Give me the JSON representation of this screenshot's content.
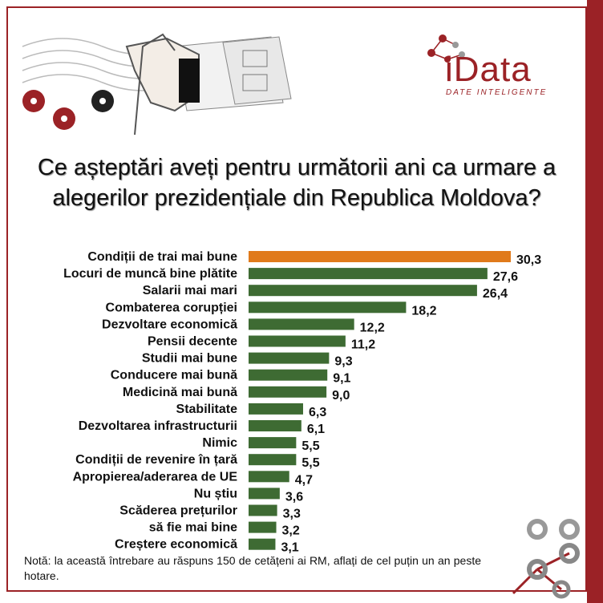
{
  "title": "Ce așteptări aveți pentru următorii ani ca urmare a alegerilor prezidențiale din Republica Moldova?",
  "logo": {
    "word": "iData",
    "tagline": "DATE INTELIGENTE"
  },
  "note": "Notă: la această întrebare au răspuns 150 de cetățeni ai RM, aflați de cel puțin un an peste hotare.",
  "colors": {
    "highlight": "#e07a1b",
    "bar": "#3e6b33",
    "accent": "#9b2226"
  },
  "chart_data": {
    "type": "bar",
    "orientation": "horizontal",
    "categories": [
      "Condiții de trai mai bune",
      "Locuri de muncă bine plătite",
      "Salarii mai mari",
      "Combaterea corupției",
      "Dezvoltare economică",
      "Pensii decente",
      "Studii mai bune",
      "Conducere mai bună",
      "Medicină mai bună",
      "Stabilitate",
      "Dezvoltarea infrastructurii",
      "Nimic",
      "Condiții de revenire în țară",
      "Apropierea/aderarea de UE",
      "Nu știu",
      "Scăderea prețurilor",
      "să fie mai bine",
      "Creștere economică"
    ],
    "values": [
      30.3,
      27.6,
      26.4,
      18.2,
      12.2,
      11.2,
      9.3,
      9.1,
      9.0,
      6.3,
      6.1,
      5.5,
      5.5,
      4.7,
      3.6,
      3.3,
      3.2,
      3.1
    ],
    "labels": [
      "30,3",
      "27,6",
      "26,4",
      "18,2",
      "12,2",
      "11,2",
      "9,3",
      "9,1",
      "9,0",
      "6,3",
      "6,1",
      "5,5",
      "5,5",
      "4,7",
      "3,6",
      "3,3",
      "3,2",
      "3,1"
    ],
    "highlight_index": 0,
    "xlim": [
      0,
      30.3
    ]
  }
}
